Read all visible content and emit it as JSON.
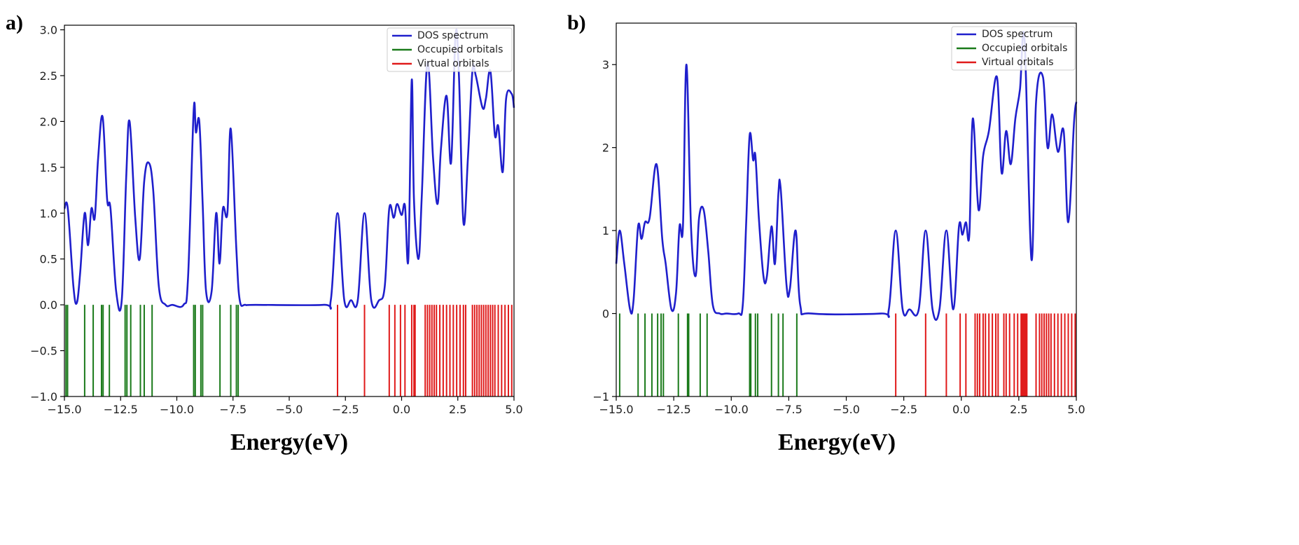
{
  "colors": {
    "dos": "#1f1fcc",
    "occupied": "#1a7a1a",
    "virtual": "#e01a1a",
    "axis": "#000000"
  },
  "chart_data": [
    {
      "panel": "a)",
      "type": "line",
      "xlabel": "Energy(eV)",
      "ylabel": "",
      "xlim": [
        -15.0,
        5.0
      ],
      "ylim": [
        -1.0,
        3.05
      ],
      "xticks": [
        -15.0,
        -12.5,
        -10.0,
        -7.5,
        -5.0,
        -2.5,
        0.0,
        2.5,
        5.0
      ],
      "xtick_labels": [
        "−15.0",
        "−12.5",
        "−10.0",
        "−7.5",
        "−5.0",
        "−2.5",
        "0.0",
        "2.5",
        "5.0"
      ],
      "yticks": [
        -1.0,
        -0.5,
        0.0,
        0.5,
        1.0,
        1.5,
        2.0,
        2.5,
        3.0
      ],
      "ytick_labels": [
        "−1.0",
        "−0.5",
        "0.0",
        "0.5",
        "1.0",
        "1.5",
        "2.0",
        "2.5",
        "3.0"
      ],
      "legend": {
        "position": "top-right",
        "entries": [
          "DOS spectrum",
          "Occupied orbitals",
          "Virtual orbitals"
        ]
      },
      "grid": false,
      "occupied_orbitals": [
        -14.93,
        -14.86,
        -14.1,
        -13.72,
        -13.35,
        -13.28,
        -13.0,
        -12.3,
        -12.22,
        -12.05,
        -11.62,
        -11.45,
        -11.1,
        -9.25,
        -9.18,
        -8.93,
        -8.85,
        -8.08,
        -7.6,
        -7.35,
        -7.27
      ],
      "virtual_orbitals": [
        -2.85,
        -1.65,
        -0.55,
        -0.3,
        -0.05,
        0.15,
        0.45,
        0.55,
        0.6,
        1.05,
        1.15,
        1.25,
        1.35,
        1.45,
        1.55,
        1.7,
        1.85,
        2.0,
        2.15,
        2.3,
        2.45,
        2.6,
        2.75,
        2.85,
        3.15,
        3.25,
        3.35,
        3.45,
        3.55,
        3.65,
        3.75,
        3.85,
        3.95,
        4.05,
        4.15,
        4.3,
        4.45,
        4.6,
        4.75,
        4.9
      ],
      "series": [
        {
          "name": "DOS spectrum",
          "x": [
            -15.0,
            -14.85,
            -14.6,
            -14.45,
            -14.3,
            -14.1,
            -13.95,
            -13.8,
            -13.65,
            -13.5,
            -13.3,
            -13.1,
            -12.95,
            -12.7,
            -12.45,
            -12.25,
            -12.1,
            -11.85,
            -11.65,
            -11.45,
            -11.25,
            -11.05,
            -10.8,
            -10.5,
            -10.2,
            -9.7,
            -9.5,
            -9.25,
            -9.15,
            -9.0,
            -8.85,
            -8.7,
            -8.45,
            -8.25,
            -8.1,
            -7.95,
            -7.75,
            -7.6,
            -7.35,
            -7.2,
            -6.95,
            -6.5,
            -3.5,
            -3.15,
            -2.85,
            -2.55,
            -2.25,
            -1.95,
            -1.65,
            -1.35,
            -1.0,
            -0.75,
            -0.55,
            -0.35,
            -0.2,
            0.0,
            0.15,
            0.3,
            0.45,
            0.55,
            0.75,
            0.9,
            1.15,
            1.4,
            1.6,
            1.75,
            2.0,
            2.2,
            2.4,
            2.55,
            2.75,
            2.95,
            3.15,
            3.3,
            3.6,
            3.75,
            3.95,
            4.15,
            4.3,
            4.5,
            4.65,
            4.9,
            5.0
          ],
          "y": [
            1.05,
            1.05,
            0.2,
            0.02,
            0.35,
            1.0,
            0.65,
            1.05,
            0.95,
            1.6,
            2.05,
            1.15,
            1.05,
            0.15,
            0.05,
            1.4,
            2.0,
            0.95,
            0.5,
            1.35,
            1.55,
            1.25,
            0.2,
            0.0,
            0.0,
            0.0,
            0.3,
            2.12,
            1.88,
            2.0,
            1.1,
            0.15,
            0.15,
            1.0,
            0.45,
            1.05,
            1.0,
            1.92,
            0.6,
            0.05,
            0.0,
            0.0,
            0.0,
            0.05,
            1.0,
            0.05,
            0.05,
            0.05,
            1.0,
            0.05,
            0.05,
            0.2,
            1.05,
            0.95,
            1.1,
            0.98,
            1.08,
            0.5,
            2.45,
            1.15,
            0.5,
            1.2,
            2.65,
            1.6,
            1.1,
            1.7,
            2.28,
            1.55,
            2.95,
            2.5,
            0.9,
            1.6,
            2.55,
            2.5,
            2.15,
            2.25,
            2.55,
            1.85,
            1.95,
            1.45,
            2.25,
            2.3,
            2.15
          ]
        }
      ]
    },
    {
      "panel": "b)",
      "type": "line",
      "xlabel": "Energy(eV)",
      "ylabel": "",
      "xlim": [
        -15.0,
        5.0
      ],
      "ylim": [
        -1.0,
        3.5
      ],
      "xticks": [
        -15.0,
        -12.5,
        -10.0,
        -7.5,
        -5.0,
        -2.5,
        0.0,
        2.5,
        5.0
      ],
      "xtick_labels": [
        "−15.0",
        "−12.5",
        "−10.0",
        "−7.5",
        "−5.0",
        "−2.5",
        "0.0",
        "2.5",
        "5.0"
      ],
      "yticks": [
        -1,
        0,
        1,
        2,
        3
      ],
      "ytick_labels": [
        "−1",
        "0",
        "1",
        "2",
        "3"
      ],
      "legend": {
        "position": "top-right",
        "entries": [
          "DOS spectrum",
          "Occupied orbitals",
          "Virtual orbitals"
        ]
      },
      "grid": false,
      "occupied_orbitals": [
        -14.85,
        -14.05,
        -13.75,
        -13.45,
        -13.2,
        -13.05,
        -12.95,
        -12.3,
        -11.9,
        -11.85,
        -11.35,
        -11.05,
        -9.2,
        -9.15,
        -8.95,
        -8.85,
        -8.25,
        -7.95,
        -7.75,
        -7.15
      ],
      "virtual_orbitals": [
        -2.85,
        -1.55,
        -0.65,
        -0.05,
        0.2,
        0.6,
        0.7,
        0.8,
        0.95,
        1.05,
        1.2,
        1.35,
        1.5,
        1.6,
        1.85,
        1.95,
        2.1,
        2.3,
        2.45,
        2.6,
        2.65,
        2.7,
        2.75,
        2.8,
        2.85,
        3.25,
        3.4,
        3.5,
        3.6,
        3.7,
        3.8,
        3.9,
        4.05,
        4.2,
        4.35,
        4.5,
        4.65,
        4.8,
        4.95
      ],
      "series": [
        {
          "name": "DOS spectrum",
          "x": [
            -15.0,
            -14.85,
            -14.65,
            -14.4,
            -14.25,
            -14.05,
            -13.9,
            -13.75,
            -13.55,
            -13.25,
            -13.0,
            -12.85,
            -12.6,
            -12.4,
            -12.25,
            -12.1,
            -11.95,
            -11.75,
            -11.55,
            -11.4,
            -11.2,
            -11.0,
            -10.8,
            -10.5,
            -10.2,
            -9.7,
            -9.5,
            -9.35,
            -9.2,
            -9.05,
            -8.95,
            -8.8,
            -8.6,
            -8.45,
            -8.25,
            -8.1,
            -7.95,
            -7.85,
            -7.6,
            -7.45,
            -7.2,
            -7.0,
            -6.5,
            -3.5,
            -3.15,
            -2.85,
            -2.55,
            -2.25,
            -1.85,
            -1.55,
            -1.25,
            -0.95,
            -0.65,
            -0.35,
            -0.1,
            0.05,
            0.2,
            0.35,
            0.5,
            0.75,
            0.95,
            1.2,
            1.55,
            1.75,
            1.95,
            2.15,
            2.35,
            2.55,
            2.75,
            3.05,
            3.25,
            3.55,
            3.75,
            3.95,
            4.2,
            4.45,
            4.65,
            4.9,
            5.0
          ],
          "y": [
            0.6,
            1.0,
            0.6,
            0.05,
            0.15,
            1.05,
            0.9,
            1.1,
            1.15,
            1.8,
            0.9,
            0.6,
            0.05,
            0.25,
            1.05,
            1.05,
            3.0,
            1.05,
            0.45,
            1.15,
            1.25,
            0.75,
            0.1,
            0.0,
            0.0,
            0.0,
            0.1,
            1.1,
            2.15,
            1.85,
            1.9,
            1.15,
            0.45,
            0.45,
            1.05,
            0.6,
            1.45,
            1.5,
            0.35,
            0.3,
            1.0,
            0.1,
            0.0,
            0.0,
            0.05,
            1.0,
            0.05,
            0.05,
            0.05,
            1.0,
            0.05,
            0.05,
            1.0,
            0.05,
            1.05,
            0.95,
            1.1,
            0.95,
            2.35,
            1.25,
            1.9,
            2.2,
            2.85,
            1.7,
            2.2,
            1.8,
            2.35,
            2.7,
            3.3,
            0.65,
            2.55,
            2.85,
            2.0,
            2.4,
            1.95,
            2.2,
            1.1,
            2.3,
            2.55
          ]
        }
      ]
    }
  ]
}
